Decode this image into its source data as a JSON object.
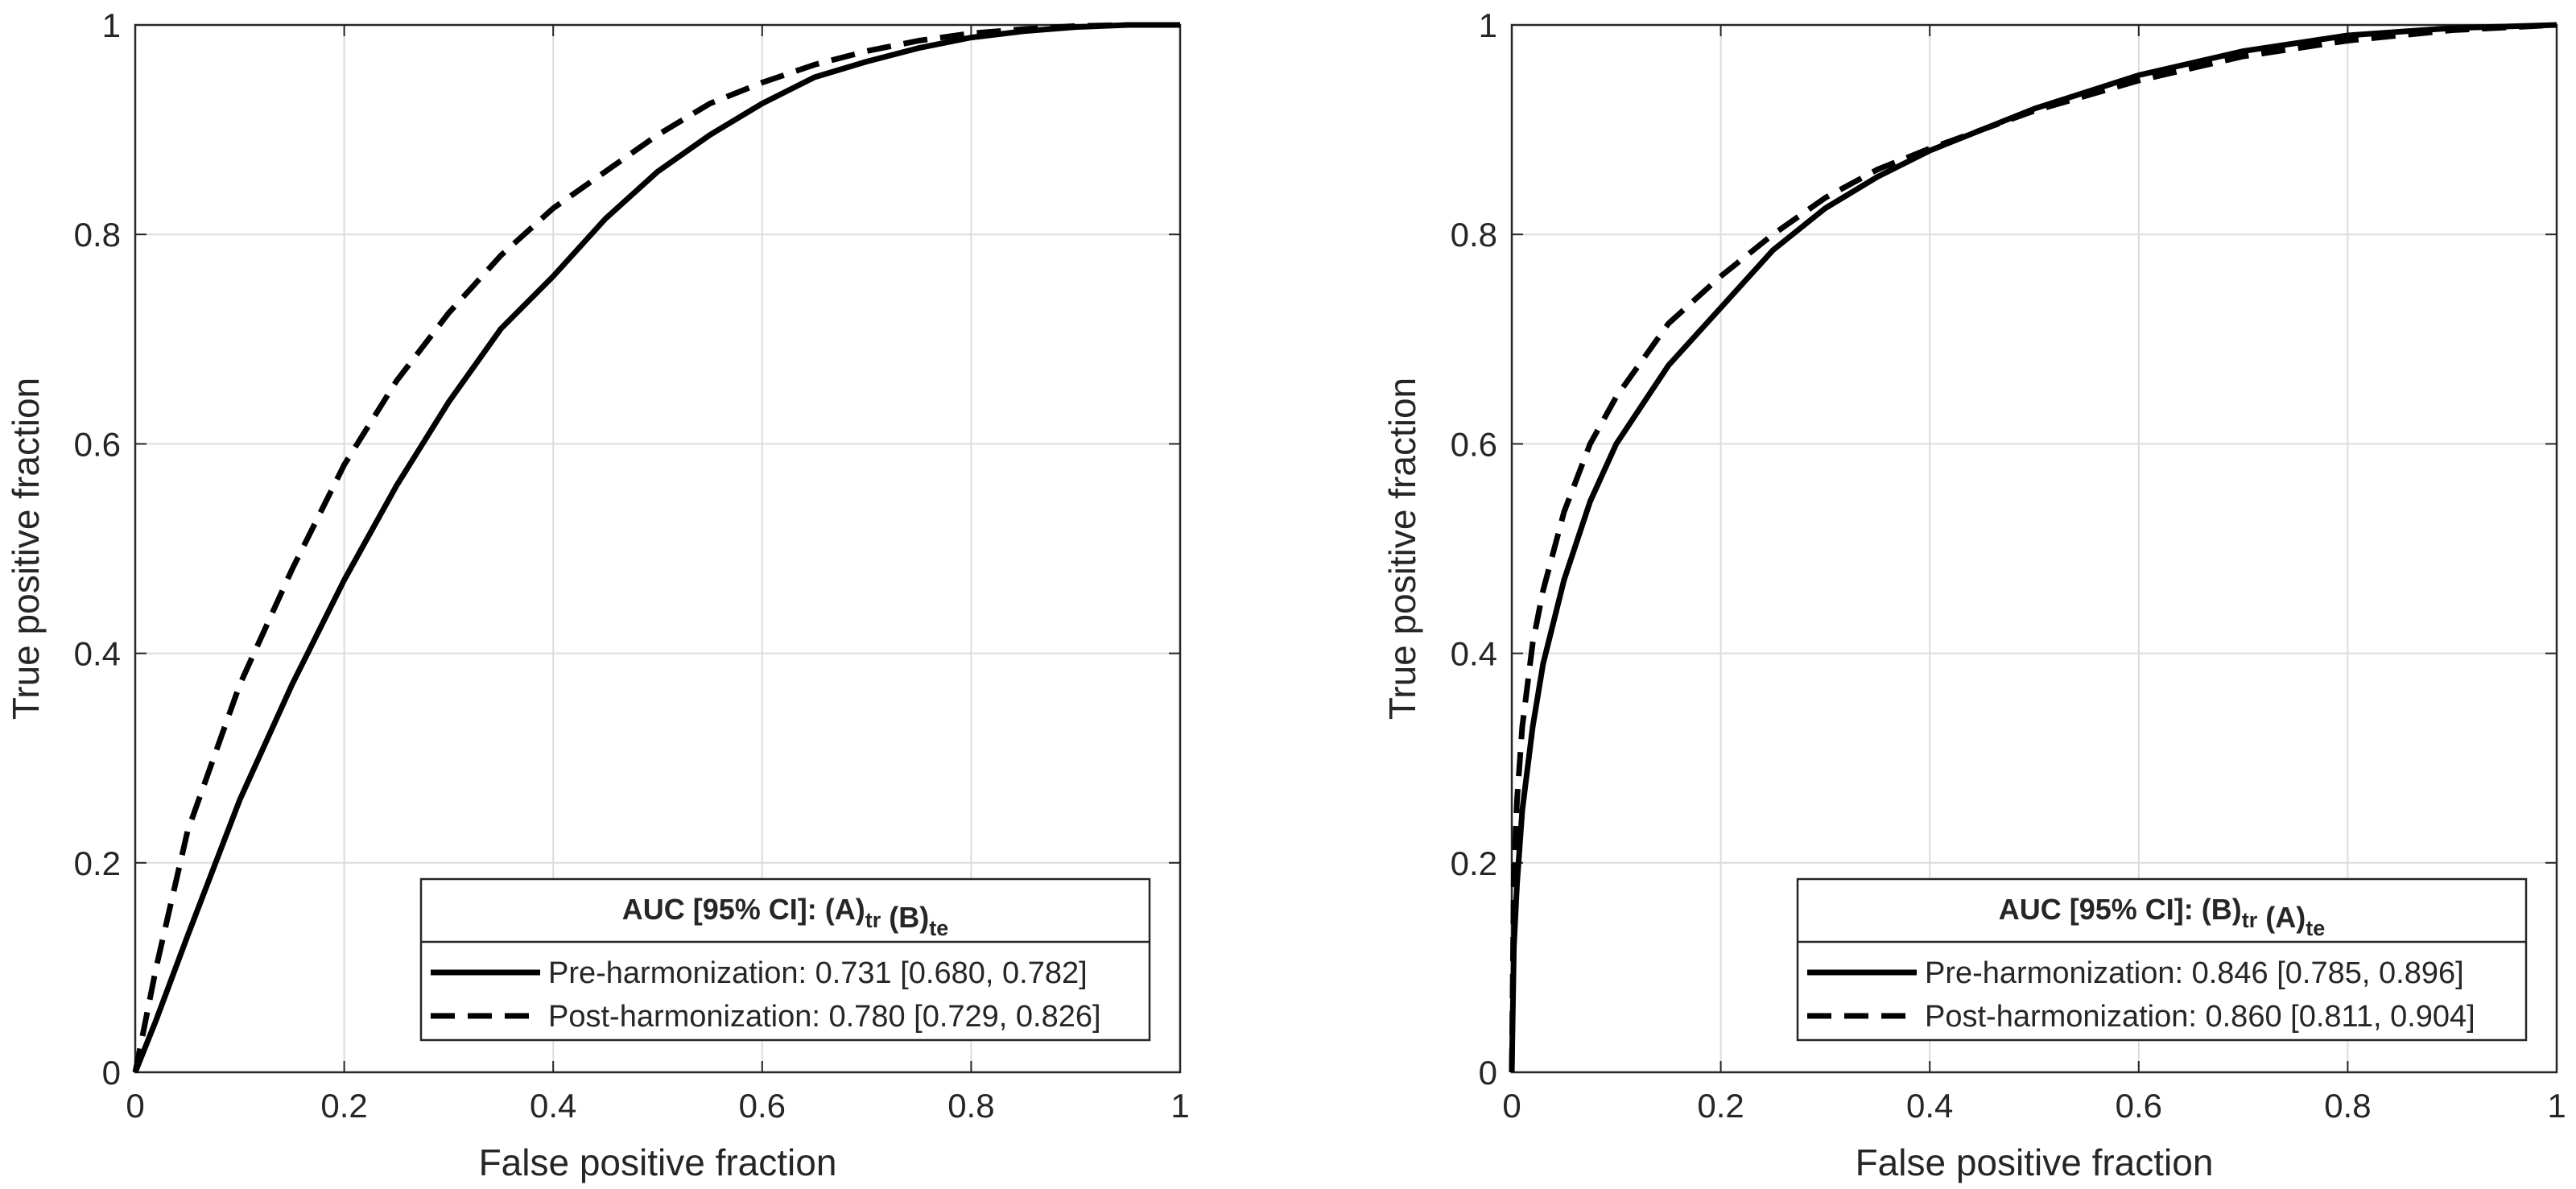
{
  "chart_data": [
    {
      "type": "line",
      "xlabel": "False positive fraction",
      "ylabel": "True positive fraction",
      "xlim": [
        0,
        1
      ],
      "ylim": [
        0,
        1
      ],
      "grid": true,
      "xticks": [
        "0",
        "0.2",
        "0.4",
        "0.6",
        "0.8",
        "1"
      ],
      "yticks": [
        "0",
        "0.2",
        "0.4",
        "0.6",
        "0.8",
        "1"
      ],
      "legend": {
        "placement": "bottom-right",
        "title_prefix": "AUC [95% CI]: ",
        "title_a": "(A)",
        "title_a_sub": "tr",
        "title_b": "(B)",
        "title_b_sub": "te"
      },
      "series": [
        {
          "name": "Pre-harmonization: 0.731 [0.680, 0.782]",
          "style": "solid",
          "x": [
            0,
            0.02,
            0.05,
            0.1,
            0.15,
            0.2,
            0.25,
            0.3,
            0.35,
            0.4,
            0.45,
            0.5,
            0.55,
            0.6,
            0.65,
            0.7,
            0.75,
            0.8,
            0.85,
            0.9,
            0.95,
            1.0
          ],
          "y": [
            0,
            0.05,
            0.13,
            0.26,
            0.37,
            0.47,
            0.56,
            0.64,
            0.71,
            0.76,
            0.815,
            0.86,
            0.895,
            0.925,
            0.95,
            0.965,
            0.978,
            0.988,
            0.994,
            0.998,
            1.0,
            1.0
          ]
        },
        {
          "name": "Post-harmonization: 0.780 [0.729, 0.826]",
          "style": "dashed",
          "x": [
            0,
            0.02,
            0.05,
            0.1,
            0.15,
            0.2,
            0.25,
            0.3,
            0.35,
            0.4,
            0.45,
            0.5,
            0.55,
            0.6,
            0.65,
            0.7,
            0.75,
            0.8,
            0.85,
            0.9,
            0.95,
            1.0
          ],
          "y": [
            0,
            0.1,
            0.23,
            0.37,
            0.48,
            0.58,
            0.66,
            0.725,
            0.78,
            0.825,
            0.86,
            0.895,
            0.925,
            0.945,
            0.962,
            0.975,
            0.985,
            0.992,
            0.996,
            0.999,
            1.0,
            1.0
          ]
        }
      ]
    },
    {
      "type": "line",
      "xlabel": "False positive fraction",
      "ylabel": "True positive fraction",
      "xlim": [
        0,
        1
      ],
      "ylim": [
        0,
        1
      ],
      "grid": true,
      "xticks": [
        "0",
        "0.2",
        "0.4",
        "0.6",
        "0.8",
        "1"
      ],
      "yticks": [
        "0",
        "0.2",
        "0.4",
        "0.6",
        "0.8",
        "1"
      ],
      "legend": {
        "placement": "bottom-right",
        "title_prefix": "AUC [95% CI]: ",
        "title_a": "(B)",
        "title_a_sub": "tr",
        "title_b": "(A)",
        "title_b_sub": "te"
      },
      "series": [
        {
          "name": "Pre-harmonization: 0.846 [0.785, 0.896]",
          "style": "solid",
          "x": [
            0,
            0.002,
            0.005,
            0.01,
            0.02,
            0.03,
            0.05,
            0.075,
            0.1,
            0.15,
            0.2,
            0.25,
            0.3,
            0.35,
            0.4,
            0.5,
            0.6,
            0.7,
            0.8,
            0.9,
            1.0
          ],
          "y": [
            0,
            0.12,
            0.18,
            0.25,
            0.33,
            0.39,
            0.47,
            0.545,
            0.6,
            0.675,
            0.73,
            0.785,
            0.825,
            0.855,
            0.88,
            0.92,
            0.952,
            0.975,
            0.99,
            0.997,
            1.0
          ]
        },
        {
          "name": "Post-harmonization: 0.860 [0.811, 0.904]",
          "style": "dashed",
          "x": [
            0,
            0.002,
            0.005,
            0.01,
            0.02,
            0.03,
            0.05,
            0.075,
            0.1,
            0.15,
            0.2,
            0.25,
            0.3,
            0.35,
            0.4,
            0.5,
            0.6,
            0.7,
            0.8,
            0.9,
            1.0
          ],
          "y": [
            0,
            0.19,
            0.26,
            0.33,
            0.41,
            0.46,
            0.535,
            0.6,
            0.645,
            0.715,
            0.76,
            0.8,
            0.835,
            0.862,
            0.882,
            0.918,
            0.947,
            0.97,
            0.985,
            0.995,
            1.0
          ]
        }
      ]
    }
  ]
}
